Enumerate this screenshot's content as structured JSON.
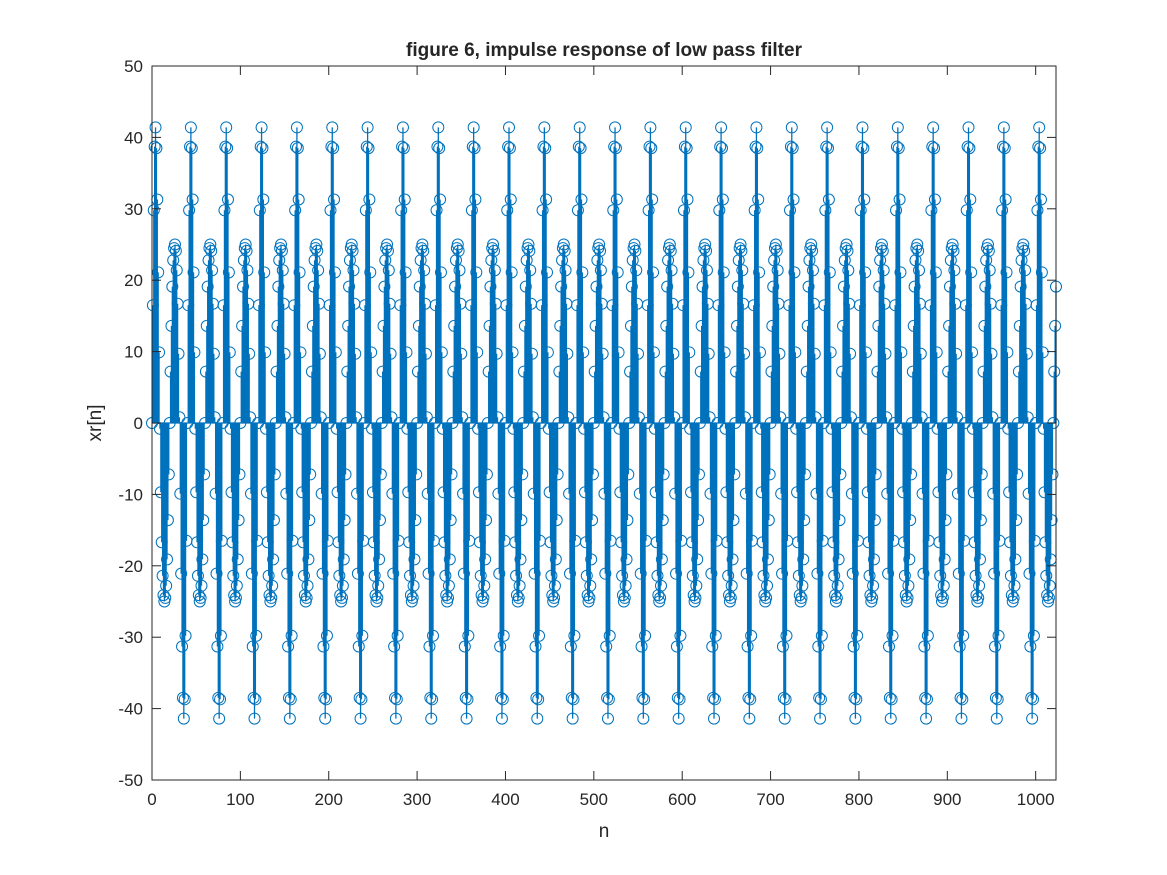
{
  "chart_data": {
    "type": "stem",
    "title": "figure 6, impulse response of low pass filter",
    "xlabel": "n",
    "ylabel": "xr[n]",
    "xlim": [
      0,
      1023
    ],
    "ylim": [
      -50,
      50
    ],
    "x_ticks": [
      0,
      100,
      200,
      300,
      400,
      500,
      600,
      700,
      800,
      900,
      1000
    ],
    "y_ticks": [
      -50,
      -40,
      -30,
      -20,
      -10,
      0,
      10,
      20,
      30,
      40,
      50
    ],
    "x_tick_labels": [
      "0",
      "100",
      "200",
      "300",
      "400",
      "500",
      "600",
      "700",
      "800",
      "900",
      "1000"
    ],
    "y_tick_labels": [
      "-50",
      "-40",
      "-30",
      "-20",
      "-10",
      "0",
      "10",
      "20",
      "30",
      "40",
      "50"
    ],
    "series_color": "#0072BD",
    "grid": false,
    "marker": "circle",
    "period": 40,
    "periodic_from": 0,
    "periodic_to": 1023,
    "one_period_values": [
      0,
      16.5,
      29.8,
      38.7,
      41.4,
      38.5,
      31.3,
      21.1,
      9.9,
      -0.8,
      -9.7,
      -16.7,
      -21.4,
      -24.1,
      -25.0,
      -24.5,
      -22.8,
      -19.1,
      -13.6,
      -7.2,
      0,
      7.2,
      13.6,
      19.1,
      22.8,
      24.5,
      25.0,
      24.1,
      21.4,
      16.7,
      9.7,
      0.8,
      -9.9,
      -21.1,
      -31.3,
      -38.5,
      -41.4,
      -38.7,
      -29.8,
      -16.5
    ],
    "final_values": [
      {
        "n": 1020,
        "value": 0
      },
      {
        "n": 1021,
        "value": 7.2
      },
      {
        "n": 1022,
        "value": 13.6
      }
    ]
  },
  "colors": {
    "axes": "#262626",
    "stem": "#0072BD",
    "background": "#ffffff"
  }
}
